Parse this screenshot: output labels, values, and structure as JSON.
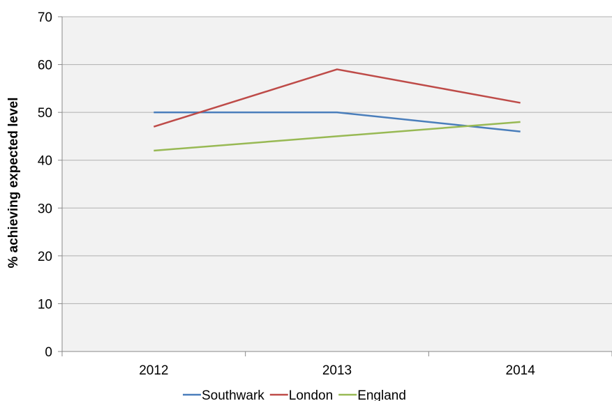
{
  "chart_data": {
    "type": "line",
    "title": "",
    "xlabel": "",
    "ylabel": "% achieving expected level",
    "categories": [
      "2012",
      "2013",
      "2014"
    ],
    "ylim": [
      0,
      70
    ],
    "yticks": [
      0,
      10,
      20,
      30,
      40,
      50,
      60,
      70
    ],
    "grid": true,
    "legend_position": "bottom",
    "series": [
      {
        "name": "Southwark",
        "values": [
          50,
          50,
          46
        ],
        "color": "#4A7EBB"
      },
      {
        "name": "London",
        "values": [
          47,
          59,
          52
        ],
        "color": "#BE4B48"
      },
      {
        "name": "England",
        "values": [
          42,
          45,
          48
        ],
        "color": "#98B954"
      }
    ]
  }
}
